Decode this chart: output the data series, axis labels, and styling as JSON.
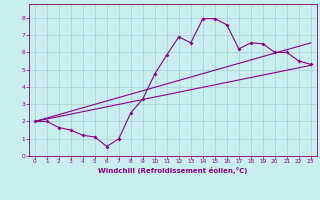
{
  "xlabel": "Windchill (Refroidissement éolien,°C)",
  "bg_color": "#c8eef0",
  "line_color": "#880088",
  "grid_color": "#aaccd4",
  "xlim": [
    -0.5,
    23.5
  ],
  "ylim": [
    0,
    8.8
  ],
  "xticks": [
    0,
    1,
    2,
    3,
    4,
    5,
    6,
    7,
    8,
    9,
    10,
    11,
    12,
    13,
    14,
    15,
    16,
    17,
    18,
    19,
    20,
    21,
    22,
    23
  ],
  "yticks": [
    0,
    1,
    2,
    3,
    4,
    5,
    6,
    7,
    8
  ],
  "line1_x": [
    0,
    1,
    2,
    3,
    4,
    5,
    6,
    7,
    8,
    9,
    10,
    11,
    12,
    13,
    14,
    15,
    16,
    17,
    18,
    19,
    20,
    21,
    22,
    23
  ],
  "line1_y": [
    2.0,
    2.0,
    1.65,
    1.5,
    1.2,
    1.1,
    0.55,
    1.0,
    2.5,
    3.3,
    4.75,
    5.85,
    6.9,
    6.55,
    7.95,
    7.95,
    7.6,
    6.2,
    6.55,
    6.5,
    6.0,
    6.0,
    5.5,
    5.3
  ],
  "line2_x": [
    0,
    23
  ],
  "line2_y": [
    2.0,
    5.25
  ],
  "line3_x": [
    0,
    23
  ],
  "line3_y": [
    2.0,
    6.55
  ]
}
